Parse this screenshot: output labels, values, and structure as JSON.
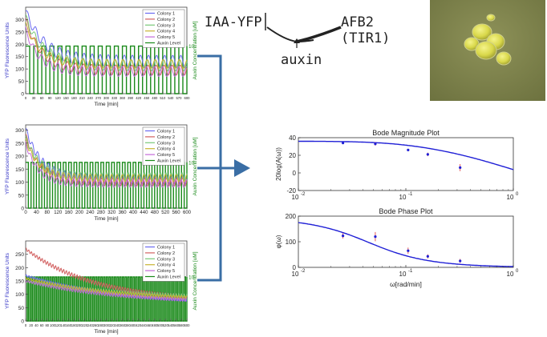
{
  "colors": {
    "colony": [
      "#6a6af0",
      "#d26060",
      "#78c878",
      "#c8b432",
      "#c46ad8"
    ],
    "auxin": "#1a8a1a",
    "arrow": "#3a6ea5",
    "bode_line": "#1f1fd6",
    "bode_pts": "#1f1fd6",
    "bode_err": "#e03030"
  },
  "schematic": {
    "left_label": "IAA-YFP",
    "right_label": "AFB2 (TIR1)",
    "bottom_label": "auxin"
  },
  "chart_data": [
    {
      "type": "line",
      "panel": "top-left",
      "ylabel": "YFP Fluorescence Units",
      "y2label": "Auxin Concentration [uM]",
      "xlabel": "Time [min]",
      "xlim": [
        0,
        600
      ],
      "ylim": [
        0,
        350
      ],
      "y2lim": [
        0,
        10
      ],
      "x_ticks": [
        0,
        30,
        60,
        90,
        120,
        150,
        180,
        210,
        240,
        270,
        300,
        330,
        360,
        390,
        420,
        450,
        480,
        510,
        540,
        570,
        600
      ],
      "x_tick_labels": [
        "0",
        "30",
        "60",
        "90",
        "120",
        "150",
        "180",
        "210",
        "240",
        "270",
        "300",
        "330",
        "360",
        "390",
        "420",
        "450",
        "480",
        "510",
        "540",
        "570",
        "600"
      ],
      "y_ticks": [
        0,
        50,
        100,
        150,
        200,
        250,
        300
      ],
      "y2_ticks": [
        10
      ],
      "legend": [
        "Colony 1",
        "Colony 2",
        "Colony 3",
        "Colony 4",
        "Colony 5",
        "Auxin Level"
      ],
      "legend_position": "top-right",
      "auxin": {
        "period": 30,
        "on_fraction": 0.5,
        "high": 10,
        "low": 0
      },
      "series": [
        {
          "name": "Colony 1",
          "base": 130,
          "amp": 25,
          "start": 335,
          "decay": 70,
          "phase": 0
        },
        {
          "name": "Colony 2",
          "base": 95,
          "amp": 20,
          "start": 300,
          "decay": 60,
          "phase": 0.4
        },
        {
          "name": "Colony 3",
          "base": 115,
          "amp": 22,
          "start": 310,
          "decay": 65,
          "phase": 0.8
        },
        {
          "name": "Colony 4",
          "base": 120,
          "amp": 18,
          "start": 280,
          "decay": 55,
          "phase": 1.2
        },
        {
          "name": "Colony 5",
          "base": 90,
          "amp": 20,
          "start": 260,
          "decay": 50,
          "phase": 1.6
        }
      ]
    },
    {
      "type": "line",
      "panel": "middle-left",
      "ylabel": "YFP Fluorescence Units",
      "y2label": "Auxin Concentration [uM]",
      "xlabel": "Time [min]",
      "xlim": [
        0,
        600
      ],
      "ylim": [
        0,
        320
      ],
      "y2lim": [
        0,
        10
      ],
      "x_ticks": [
        0,
        40,
        80,
        120,
        160,
        200,
        240,
        280,
        320,
        360,
        400,
        440,
        480,
        520,
        560,
        600
      ],
      "x_tick_labels": [
        "0",
        "40",
        "80",
        "120",
        "160",
        "200",
        "240",
        "280",
        "320",
        "360",
        "400",
        "440",
        "480",
        "520",
        "560",
        "600"
      ],
      "y_ticks": [
        0,
        50,
        100,
        150,
        200,
        250,
        300
      ],
      "y2_ticks": [
        10
      ],
      "legend": [
        "Colony 1",
        "Colony 2",
        "Colony 3",
        "Colony 4",
        "Colony 5",
        "Auxin Level"
      ],
      "legend_position": "top-right",
      "auxin": {
        "period": 20,
        "on_fraction": 0.5,
        "high": 10,
        "low": 0
      },
      "series": [
        {
          "name": "Colony 1",
          "base": 110,
          "amp": 18,
          "start": 305,
          "decay": 60,
          "phase": 0
        },
        {
          "name": "Colony 2",
          "base": 100,
          "amp": 15,
          "start": 280,
          "decay": 55,
          "phase": 0.5
        },
        {
          "name": "Colony 3",
          "base": 120,
          "amp": 16,
          "start": 270,
          "decay": 55,
          "phase": 1.0
        },
        {
          "name": "Colony 4",
          "base": 115,
          "amp": 14,
          "start": 260,
          "decay": 50,
          "phase": 1.5
        },
        {
          "name": "Colony 5",
          "base": 95,
          "amp": 15,
          "start": 250,
          "decay": 45,
          "phase": 2.0
        }
      ]
    },
    {
      "type": "line",
      "panel": "bottom-left",
      "ylabel": "YFP Fluorescence Units",
      "y2label": "Auxin Concentration [uM]",
      "xlabel": "Time [min]",
      "xlim": [
        0,
        600
      ],
      "ylim": [
        0,
        300
      ],
      "y2lim": [
        0,
        10
      ],
      "x_ticks": [
        0,
        20,
        40,
        60,
        80,
        100,
        120,
        140,
        160,
        180,
        200,
        220,
        240,
        260,
        280,
        300,
        320,
        340,
        360,
        380,
        400,
        420,
        440,
        460,
        480,
        500,
        520,
        540,
        560,
        580,
        600
      ],
      "x_tick_labels": [
        "0",
        "20",
        "40",
        "60",
        "80",
        "100",
        "120",
        "140",
        "160",
        "180",
        "200",
        "220",
        "240",
        "260",
        "280",
        "300",
        "320",
        "340",
        "360",
        "380",
        "400",
        "420",
        "440",
        "460",
        "480",
        "500",
        "520",
        "540",
        "560",
        "580",
        "600"
      ],
      "y_ticks": [
        0,
        50,
        100,
        150,
        200,
        250
      ],
      "y2_ticks": [
        10
      ],
      "legend": [
        "Colony 1",
        "Colony 2",
        "Colony 3",
        "Colony 4",
        "Colony 5",
        "Auxin Level"
      ],
      "legend_position": "top-right",
      "auxin": {
        "period": 10,
        "on_fraction": 0.5,
        "high": 10,
        "low": 0
      },
      "series": [
        {
          "name": "Colony 1",
          "base": 60,
          "amp": 6,
          "start": 170,
          "decay": 350,
          "phase": 0
        },
        {
          "name": "Colony 2",
          "base": 70,
          "amp": 8,
          "start": 270,
          "decay": 260,
          "phase": 0.7
        },
        {
          "name": "Colony 3",
          "base": 80,
          "amp": 6,
          "start": 150,
          "decay": 380,
          "phase": 1.3
        },
        {
          "name": "Colony 4",
          "base": 75,
          "amp": 6,
          "start": 160,
          "decay": 330,
          "phase": 1.9
        },
        {
          "name": "Colony 5",
          "base": 65,
          "amp": 6,
          "start": 150,
          "decay": 340,
          "phase": 2.5
        }
      ]
    },
    {
      "type": "line",
      "panel": "bode-magnitude",
      "title": "Bode Magnitude Plot",
      "xlabel": "",
      "ylabel": "20log(A(ω))",
      "xscale": "log",
      "xlim": [
        0.01,
        1
      ],
      "ylim": [
        -20,
        40
      ],
      "x_ticks": [
        0.01,
        0.1,
        1
      ],
      "x_tick_labels": [
        "10",
        "10",
        "10"
      ],
      "x_tick_exps": [
        "-2",
        "-1",
        "0"
      ],
      "y_ticks": [
        -20,
        0,
        20,
        40
      ],
      "y_tick_labels": [
        "-20",
        "0",
        "20",
        "40"
      ],
      "fit": {
        "k_db": 36,
        "wc": 0.08
      },
      "points": [
        {
          "x": 0.026,
          "y": 34,
          "err": 1
        },
        {
          "x": 0.052,
          "y": 33,
          "err": 2
        },
        {
          "x": 0.105,
          "y": 26,
          "err": 1
        },
        {
          "x": 0.16,
          "y": 21,
          "err": 2
        },
        {
          "x": 0.32,
          "y": 6,
          "err": 4
        }
      ]
    },
    {
      "type": "line",
      "panel": "bode-phase",
      "title": "Bode Phase Plot",
      "xlabel": "ω[rad/min]",
      "ylabel": "φ(ω)",
      "xscale": "log",
      "xlim": [
        0.01,
        1
      ],
      "ylim": [
        0,
        200
      ],
      "x_ticks": [
        0.01,
        0.1,
        1
      ],
      "x_tick_labels": [
        "10",
        "10",
        "10"
      ],
      "x_tick_exps": [
        "-2",
        "-1",
        "0"
      ],
      "y_ticks": [
        0,
        100,
        200
      ],
      "y_tick_labels": [
        "0",
        "100",
        "200"
      ],
      "fit": {
        "phi0": 195,
        "wc": 0.045
      },
      "points": [
        {
          "x": 0.026,
          "y": 123,
          "err": 10
        },
        {
          "x": 0.052,
          "y": 120,
          "err": 18
        },
        {
          "x": 0.105,
          "y": 65,
          "err": 12
        },
        {
          "x": 0.16,
          "y": 43,
          "err": 8
        },
        {
          "x": 0.32,
          "y": 25,
          "err": 8
        }
      ]
    }
  ]
}
